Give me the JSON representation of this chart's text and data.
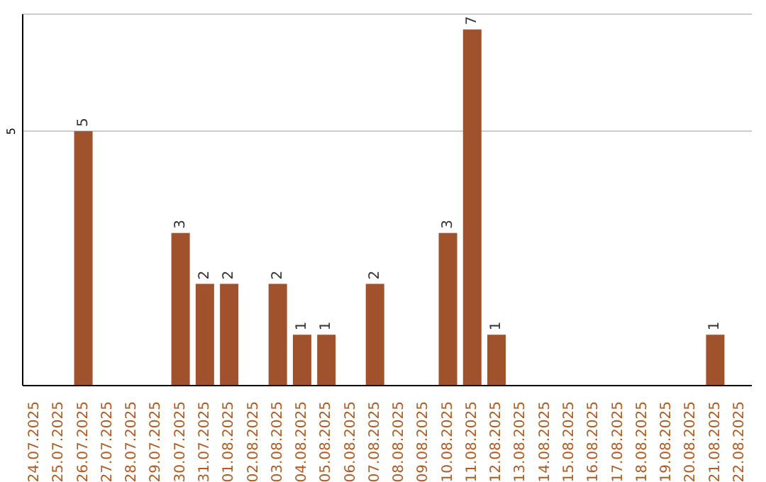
{
  "chart_data": {
    "type": "bar",
    "categories": [
      "24.07.2025",
      "25.07.2025",
      "26.07.2025",
      "27.07.2025",
      "28.07.2025",
      "29.07.2025",
      "30.07.2025",
      "31.07.2025",
      "01.08.2025",
      "02.08.2025",
      "03.08.2025",
      "04.08.2025",
      "05.08.2025",
      "06.08.2025",
      "07.08.2025",
      "08.08.2025",
      "09.08.2025",
      "10.08.2025",
      "11.08.2025",
      "12.08.2025",
      "13.08.2025",
      "14.08.2025",
      "15.08.2025",
      "16.08.2025",
      "17.08.2025",
      "18.08.2025",
      "19.08.2025",
      "20.08.2025",
      "21.08.2025",
      "22.08.2025"
    ],
    "values": [
      0,
      0,
      5,
      0,
      0,
      0,
      3,
      2,
      2,
      0,
      2,
      1,
      1,
      0,
      2,
      0,
      0,
      3,
      7,
      1,
      0,
      0,
      0,
      0,
      0,
      0,
      0,
      0,
      1,
      0
    ],
    "value_labels": [
      null,
      null,
      "5",
      null,
      null,
      null,
      "3",
      "2",
      "2",
      null,
      "2",
      "1",
      "1",
      null,
      "2",
      null,
      null,
      "3",
      "7",
      "1",
      null,
      null,
      null,
      null,
      null,
      null,
      null,
      null,
      "1",
      null
    ],
    "color": "#a0522d",
    "ylim": [
      0,
      7.3
    ],
    "yticks": [
      5
    ],
    "grid": "y"
  }
}
